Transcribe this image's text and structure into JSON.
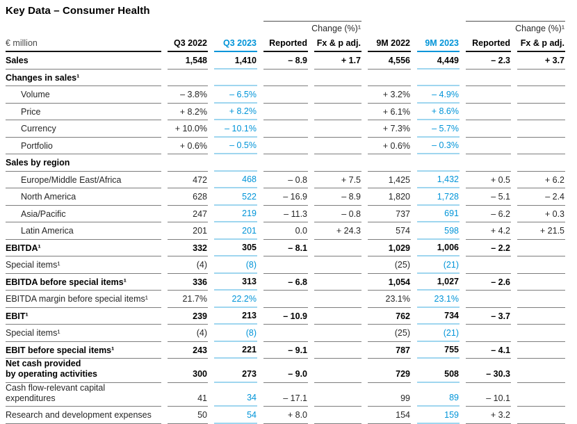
{
  "title": "Key Data – Consumer Health",
  "colors": {
    "accent_blue": "#0094d8",
    "light_blue_line": "#9fd6ef",
    "row_line_gray": "#7c7c7c",
    "header_line_black": "#141414"
  },
  "table": {
    "unit_label": "€ million",
    "group_headers": [
      {
        "label": "Change (%)¹"
      },
      {
        "label": "Change (%)¹"
      }
    ],
    "columns": [
      "Q3 2022",
      "Q3 2023",
      "Reported",
      "Fx & p adj.",
      "9M 2022",
      "9M 2023",
      "Reported",
      "Fx & p adj."
    ],
    "blue_column_indexes": [
      1,
      5
    ],
    "rows": [
      {
        "label": "Sales",
        "style": "bold",
        "values": [
          "1,548",
          "1,410",
          "– 8.9",
          "+ 1.7",
          "4,556",
          "4,449",
          "– 2.3",
          "+ 3.7"
        ]
      },
      {
        "label": "Changes in sales¹",
        "style": "section",
        "values": [
          "",
          "",
          "",
          "",
          "",
          "",
          "",
          ""
        ]
      },
      {
        "label": "Volume",
        "style": "indent",
        "values": [
          "– 3.8%",
          "– 6.5%",
          "",
          "",
          "+ 3.2%",
          "– 4.9%",
          "",
          ""
        ]
      },
      {
        "label": "Price",
        "style": "indent",
        "values": [
          "+ 8.2%",
          "+ 8.2%",
          "",
          "",
          "+ 6.1%",
          "+ 8.6%",
          "",
          ""
        ]
      },
      {
        "label": "Currency",
        "style": "indent",
        "values": [
          "+ 10.0%",
          "– 10.1%",
          "",
          "",
          "+ 7.3%",
          "– 5.7%",
          "",
          ""
        ]
      },
      {
        "label": "Portfolio",
        "style": "indent",
        "values": [
          "+ 0.6%",
          "– 0.5%",
          "",
          "",
          "+ 0.6%",
          "– 0.3%",
          "",
          ""
        ]
      },
      {
        "label": "Sales by region",
        "style": "section",
        "values": [
          "",
          "",
          "",
          "",
          "",
          "",
          "",
          ""
        ]
      },
      {
        "label": "Europe/Middle East/Africa",
        "style": "indent",
        "values": [
          "472",
          "468",
          "– 0.8",
          "+ 7.5",
          "1,425",
          "1,432",
          "+ 0.5",
          "+ 6.2"
        ]
      },
      {
        "label": "North America",
        "style": "indent",
        "values": [
          "628",
          "522",
          "– 16.9",
          "– 8.9",
          "1,820",
          "1,728",
          "– 5.1",
          "– 2.4"
        ]
      },
      {
        "label": "Asia/Pacific",
        "style": "indent",
        "values": [
          "247",
          "219",
          "– 11.3",
          "– 0.8",
          "737",
          "691",
          "– 6.2",
          "+ 0.3"
        ]
      },
      {
        "label": "Latin America",
        "style": "indent",
        "values": [
          "201",
          "201",
          "0.0",
          "+ 24.3",
          "574",
          "598",
          "+ 4.2",
          "+ 21.5"
        ]
      },
      {
        "label": "EBITDA¹",
        "style": "bold",
        "values": [
          "332",
          "305",
          "– 8.1",
          "",
          "1,029",
          "1,006",
          "– 2.2",
          ""
        ]
      },
      {
        "label": "Special items¹",
        "style": "normal",
        "values": [
          "(4)",
          "(8)",
          "",
          "",
          "(25)",
          "(21)",
          "",
          ""
        ]
      },
      {
        "label": "EBITDA before special items¹",
        "style": "bold",
        "values": [
          "336",
          "313",
          "– 6.8",
          "",
          "1,054",
          "1,027",
          "– 2.6",
          ""
        ]
      },
      {
        "label": "EBITDA margin before special items¹",
        "style": "normal",
        "values": [
          "21.7%",
          "22.2%",
          "",
          "",
          "23.1%",
          "23.1%",
          "",
          ""
        ]
      },
      {
        "label": "EBIT¹",
        "style": "bold",
        "values": [
          "239",
          "213",
          "– 10.9",
          "",
          "762",
          "734",
          "– 3.7",
          ""
        ]
      },
      {
        "label": "Special items¹",
        "style": "normal",
        "values": [
          "(4)",
          "(8)",
          "",
          "",
          "(25)",
          "(21)",
          "",
          ""
        ]
      },
      {
        "label": "EBIT before special items¹",
        "style": "bold",
        "values": [
          "243",
          "221",
          "– 9.1",
          "",
          "787",
          "755",
          "– 4.1",
          ""
        ]
      },
      {
        "label": "Net cash provided\nby operating activities",
        "style": "bold",
        "values": [
          "300",
          "273",
          "– 9.0",
          "",
          "729",
          "508",
          "– 30.3",
          ""
        ]
      },
      {
        "label": "Cash flow-relevant capital\nexpenditures",
        "style": "normal",
        "values": [
          "41",
          "34",
          "– 17.1",
          "",
          "99",
          "89",
          "– 10.1",
          ""
        ]
      },
      {
        "label": "Research and development expenses",
        "style": "normal",
        "values": [
          "50",
          "54",
          "+ 8.0",
          "",
          "154",
          "159",
          "+ 3.2",
          ""
        ]
      }
    ]
  }
}
